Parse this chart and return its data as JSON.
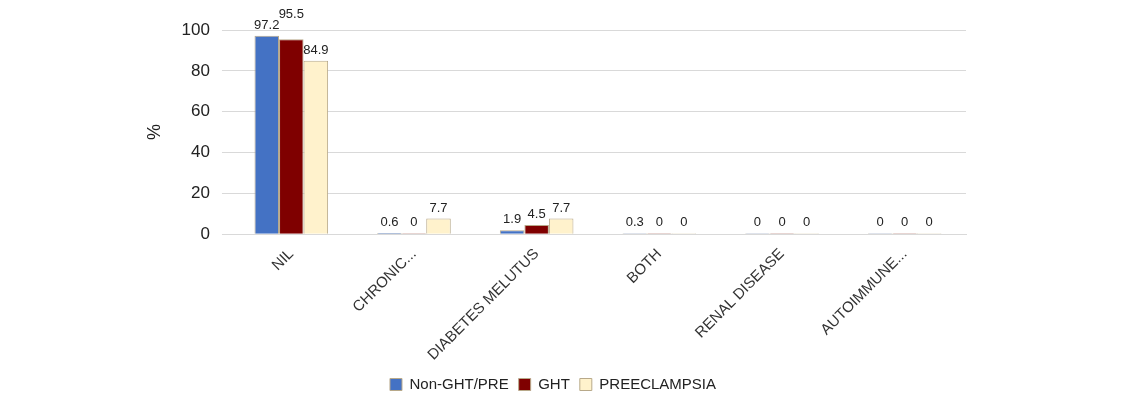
{
  "chart_data": {
    "type": "bar",
    "ylabel": "%",
    "categories": [
      "NIL",
      "CHRONIC...",
      "DIABETES MELUTUS",
      "BOTH",
      "RENAL DISEASE",
      "AUTOIMMUNE..."
    ],
    "series": [
      {
        "name": "Non-GHT/PRE",
        "color": "#4472c4",
        "values": [
          97.2,
          0.6,
          1.9,
          0.3,
          0,
          0
        ]
      },
      {
        "name": "GHT",
        "color": "#7f0000",
        "values": [
          95.5,
          0,
          4.5,
          0,
          0,
          0
        ]
      },
      {
        "name": "PREECLAMPSIA",
        "color": "#fff2cc",
        "values": [
          84.9,
          7.7,
          7.7,
          0,
          0,
          0
        ]
      }
    ],
    "ylim": [
      0,
      100
    ],
    "yticks": [
      0,
      20,
      40,
      60,
      80,
      100
    ],
    "grid": "y",
    "legend": "bottom",
    "data_labels": true
  }
}
